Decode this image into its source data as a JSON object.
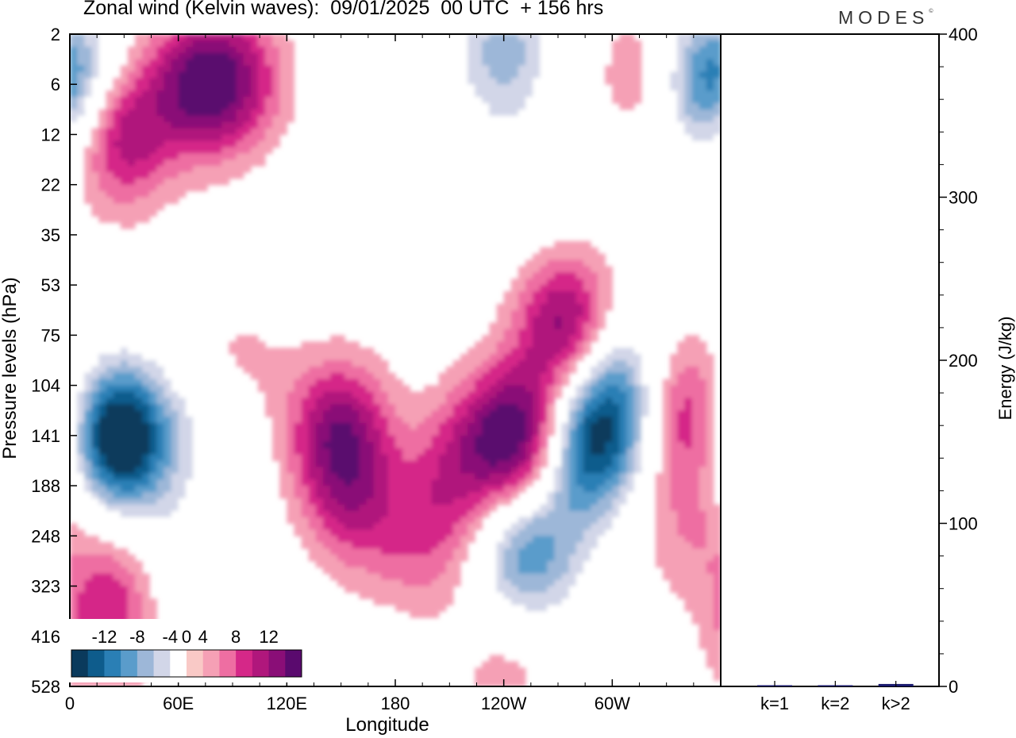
{
  "header": {
    "title": "Zonal wind (Kelvin waves):  09/01/2025  00 UTC  + 156 hrs",
    "logo": "MODES",
    "logo_mark": "©"
  },
  "chart_data": [
    {
      "type": "heatmap",
      "title": "Zonal wind (Kelvin waves):  09/01/2025  00 UTC  + 156 hrs",
      "xlabel": "Longitude",
      "ylabel": "Pressure levels (hPa)",
      "x_ticks": [
        "0",
        "60E",
        "120E",
        "180",
        "120W",
        "60W"
      ],
      "x_tick_degrees": [
        0,
        60,
        120,
        180,
        240,
        300
      ],
      "xlim": [
        0,
        360
      ],
      "y_ticks": [
        "2",
        "6",
        "12",
        "22",
        "35",
        "53",
        "75",
        "104",
        "141",
        "188",
        "248",
        "323",
        "416",
        "528"
      ],
      "y_scale": "level index (top 2 hPa to bottom 528 hPa)",
      "colorbar": {
        "labels": [
          "-12",
          "-8",
          "-4",
          "0",
          "4",
          "8",
          "12"
        ],
        "levels": [
          -14,
          -12,
          -10,
          -8,
          -6,
          -4,
          -2,
          2,
          4,
          6,
          8,
          10,
          12,
          14
        ],
        "colors": [
          "#0a3a5c",
          "#0e5c8c",
          "#2a7fb5",
          "#5a9ccb",
          "#9db7d8",
          "#d2d6e8",
          "#ffffff",
          "#f9c9c6",
          "#f5a0b5",
          "#ee6ea2",
          "#d52888",
          "#b0177c",
          "#8a0e77",
          "#5a0a6e"
        ]
      },
      "blobs": [
        {
          "lon": 22,
          "level": 8.0,
          "value": -12
        },
        {
          "lon": 36,
          "level": 8.1,
          "value": -8
        },
        {
          "lon": 118,
          "level": 7.4,
          "value": 1
        },
        {
          "lon": 150,
          "level": 7.9,
          "value": 10
        },
        {
          "lon": 152,
          "level": 9.2,
          "value": 5
        },
        {
          "lon": 170,
          "level": 9.8,
          "value": 3
        },
        {
          "lon": 200,
          "level": 10.3,
          "value": 4
        },
        {
          "lon": 210,
          "level": 8.8,
          "value": 5
        },
        {
          "lon": 232,
          "level": 8.1,
          "value": 5
        },
        {
          "lon": 250,
          "level": 8.0,
          "value": 11
        },
        {
          "lon": 274,
          "level": 5.8,
          "value": 11
        },
        {
          "lon": 288,
          "level": 8.2,
          "value": -13
        },
        {
          "lon": 304,
          "level": 7.0,
          "value": -8
        },
        {
          "lon": 248,
          "level": 10.4,
          "value": -7
        },
        {
          "lon": 268,
          "level": 10.1,
          "value": -4
        },
        {
          "lon": 340,
          "level": 7.4,
          "value": 7
        },
        {
          "lon": 20,
          "level": 11.8,
          "value": 6
        },
        {
          "lon": 25,
          "level": 10.8,
          "value": 3
        },
        {
          "lon": 70,
          "level": 1.0,
          "value": 11
        },
        {
          "lon": 95,
          "level": 0.9,
          "value": 7
        },
        {
          "lon": 28,
          "level": 1.8,
          "value": 6
        },
        {
          "lon": 30,
          "level": 2.3,
          "value": 4
        },
        {
          "lon": 245,
          "level": 3.0,
          "value": -3
        },
        {
          "lon": 187,
          "level": 2.3,
          "value": -3
        },
        {
          "lon": 350,
          "level": 0.9,
          "value": -8
        },
        {
          "lon": 5,
          "level": 0.9,
          "value": -5
        },
        {
          "lon": 240,
          "level": 0.3,
          "value": -7
        },
        {
          "lon": 318,
          "level": 0.8,
          "value": 4
        },
        {
          "lon": 240,
          "level": 12.8,
          "value": 3
        },
        {
          "lon": 62,
          "level": 10.4,
          "value": -3
        },
        {
          "lon": 90,
          "level": 6.8,
          "value": 4
        },
        {
          "lon": 85,
          "level": 7.6,
          "value": -4
        },
        {
          "lon": 340,
          "level": 10.0,
          "value": 3
        },
        {
          "lon": 350,
          "level": 8.5,
          "value": 3
        }
      ]
    },
    {
      "type": "bar",
      "categories": [
        "k=1",
        "k=2",
        "k>2"
      ],
      "values": [
        0.5,
        0.5,
        1.5
      ],
      "ylabel": "Energy (J/kg)",
      "ylim": [
        0,
        400
      ],
      "y_ticks": [
        0,
        100,
        200,
        300,
        400
      ],
      "bar_color": "#1a1a6e"
    }
  ]
}
